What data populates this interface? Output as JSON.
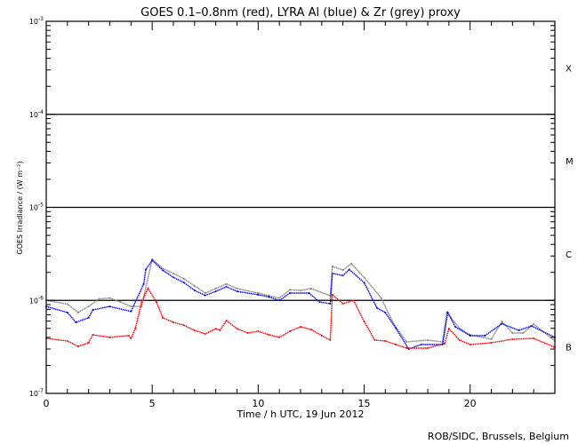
{
  "chart_data": {
    "type": "scatter",
    "title": "GOES 0.1–0.8nm (red), LYRA Al (blue) & Zr (grey) proxy",
    "xlabel": "Time / h UTC, 19 Jun 2012",
    "ylabel": "GOES Irradiance / (W m⁻²)",
    "xlim": [
      0,
      24
    ],
    "ylim": [
      1e-07,
      0.001
    ],
    "yscale": "log",
    "x_ticks": [
      0,
      5,
      10,
      15,
      20
    ],
    "y_ticks": [
      {
        "base": "10",
        "exp": "-7",
        "value": 1e-07
      },
      {
        "base": "10",
        "exp": "-6",
        "value": 1e-06
      },
      {
        "base": "10",
        "exp": "-5",
        "value": 1e-05
      },
      {
        "base": "10",
        "exp": "-4",
        "value": 0.0001
      },
      {
        "base": "10",
        "exp": "-3",
        "value": 0.001
      }
    ],
    "flare_classes": [
      {
        "label": "X",
        "value": 0.000316
      },
      {
        "label": "M",
        "value": 3.16e-05
      },
      {
        "label": "C",
        "value": 3.16e-06
      },
      {
        "label": "B",
        "value": 3.16e-07
      }
    ],
    "reference_lines": [
      1e-06,
      1e-05,
      0.0001
    ],
    "series": [
      {
        "name": "LYRA Zr proxy (grey)",
        "color": "#808080",
        "x": [
          0,
          1,
          1.5,
          2,
          2.5,
          3,
          3.5,
          4,
          4.5,
          5,
          5.5,
          6,
          6.5,
          7,
          7.5,
          8,
          8.5,
          9,
          10,
          10.5,
          11,
          11.5,
          12,
          12.5,
          13.4,
          13.5,
          14,
          14.4,
          15,
          15.8,
          16.4,
          17,
          18,
          18.7,
          18.9,
          19.5,
          20,
          21,
          21.5,
          22,
          22.5,
          23,
          24
        ],
        "y": [
          1e-06,
          9.1e-07,
          7.4e-07,
          8.6e-07,
          1.04e-06,
          1.06e-06,
          9.6e-07,
          8.6e-07,
          8.6e-07,
          2.77e-06,
          2.2e-06,
          1.95e-06,
          1.7e-06,
          1.43e-06,
          1.2e-06,
          1.34e-06,
          1.5e-06,
          1.34e-06,
          1.2e-06,
          1.12e-06,
          1.06e-06,
          1.3e-06,
          1.28e-06,
          1.34e-06,
          1.12e-06,
          2.32e-06,
          2.12e-06,
          2.48e-06,
          1.77e-06,
          1.06e-06,
          5.56e-07,
          3.58e-07,
          3.74e-07,
          3.58e-07,
          7.4e-07,
          5e-07,
          4.27e-07,
          3.82e-07,
          5.93e-07,
          4.46e-07,
          4.46e-07,
          5.56e-07,
          3.66e-07
        ]
      },
      {
        "name": "LYRA Al proxy (blue)",
        "color": "#0000ff",
        "x": [
          0,
          1,
          1.4,
          2,
          2.2,
          3,
          4,
          4.6,
          4.7,
          5,
          5.5,
          6,
          6.5,
          7,
          7.5,
          8,
          8.5,
          9,
          10,
          10.5,
          11,
          11.5,
          12.4,
          12.9,
          13.4,
          13.5,
          14,
          14.3,
          15,
          15.6,
          16,
          16.5,
          17.1,
          17.7,
          18.7,
          18.95,
          19.3,
          20,
          20.7,
          21.5,
          22.3,
          22.9,
          24
        ],
        "y": [
          8.6e-07,
          7.4e-07,
          5.8e-07,
          6.5e-07,
          7.9e-07,
          8.6e-07,
          7.6e-07,
          1.5e-06,
          2.15e-06,
          2.7e-06,
          2.1e-06,
          1.77e-06,
          1.55e-06,
          1.28e-06,
          1.13e-06,
          1.25e-06,
          1.4e-06,
          1.25e-06,
          1.15e-06,
          1.09e-06,
          1e-06,
          1.2e-06,
          1.2e-06,
          9.6e-07,
          9.2e-07,
          1.95e-06,
          1.85e-06,
          2.15e-06,
          1.55e-06,
          8.3e-07,
          7.4e-07,
          5e-07,
          3e-07,
          3.35e-07,
          3.35e-07,
          7.4e-07,
          5.2e-07,
          4.17e-07,
          4.17e-07,
          5.6e-07,
          4.76e-07,
          5.3e-07,
          4e-07
        ]
      },
      {
        "name": "GOES 0.1-0.8nm (red)",
        "color": "#ff0000",
        "x": [
          0,
          1,
          1.5,
          2,
          2.2,
          3,
          3.9,
          4,
          4.2,
          4.5,
          4.8,
          5.2,
          5.5,
          6,
          6.5,
          7,
          7.5,
          8,
          8.2,
          8.5,
          9,
          9.5,
          10,
          10.5,
          11,
          11.5,
          12,
          12.5,
          13,
          13.4,
          13.5,
          14,
          14.5,
          15,
          15.5,
          16,
          16.5,
          17,
          18,
          18.8,
          19,
          19.5,
          20,
          21,
          22,
          23,
          24
        ],
        "y": [
          3.9e-07,
          3.66e-07,
          3.2e-07,
          3.5e-07,
          4.27e-07,
          4e-07,
          4.17e-07,
          3.9e-07,
          4.97e-07,
          9.6e-07,
          1.34e-06,
          9.6e-07,
          6.5e-07,
          5.8e-07,
          5.4e-07,
          4.76e-07,
          4.36e-07,
          4.97e-07,
          4.76e-07,
          6.07e-07,
          4.97e-07,
          4.46e-07,
          4.66e-07,
          4.27e-07,
          4e-07,
          4.66e-07,
          5.2e-07,
          4.86e-07,
          4.17e-07,
          3.74e-07,
          1.15e-06,
          9.2e-07,
          1e-06,
          5.93e-07,
          3.74e-07,
          3.66e-07,
          3.35e-07,
          3.07e-07,
          3.07e-07,
          3.43e-07,
          4.97e-07,
          3.74e-07,
          3.35e-07,
          3.5e-07,
          3.82e-07,
          3.9e-07,
          3.13e-07
        ]
      }
    ]
  },
  "footer": "ROB/SIDC, Brussels, Belgium"
}
